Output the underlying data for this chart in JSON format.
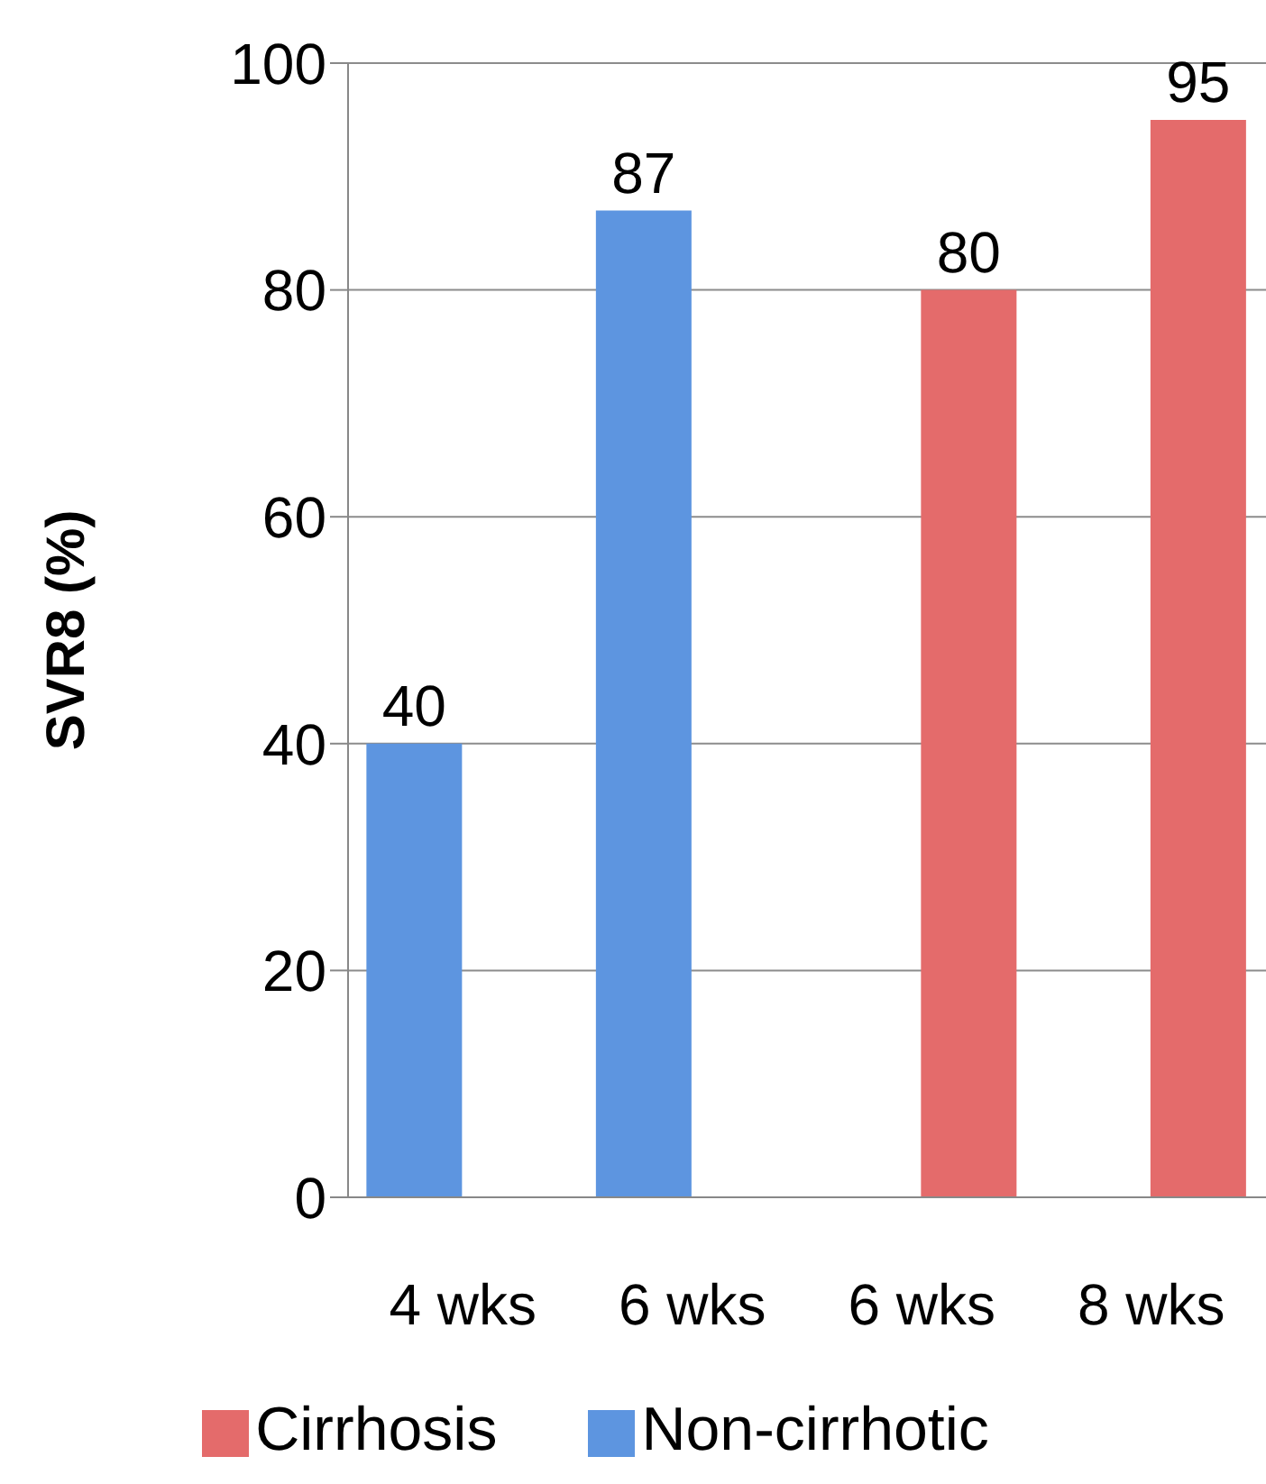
{
  "chart_data": {
    "type": "bar",
    "ylabel": "SVR8 (%)",
    "categories": [
      "4 wks",
      "6 wks",
      "6 wks",
      "8 wks"
    ],
    "series": [
      {
        "name": "Non-cirrhotic",
        "color": "#5d95e0",
        "values": [
          40,
          87,
          null,
          null
        ]
      },
      {
        "name": "Cirrhosis",
        "color": "#e46b6b",
        "values": [
          null,
          null,
          80,
          95
        ]
      }
    ],
    "ylim": [
      0,
      100
    ],
    "yticks": [
      0,
      20,
      40,
      60,
      80,
      100
    ],
    "grid": "y",
    "legend": "bottom",
    "data_labels": true
  }
}
